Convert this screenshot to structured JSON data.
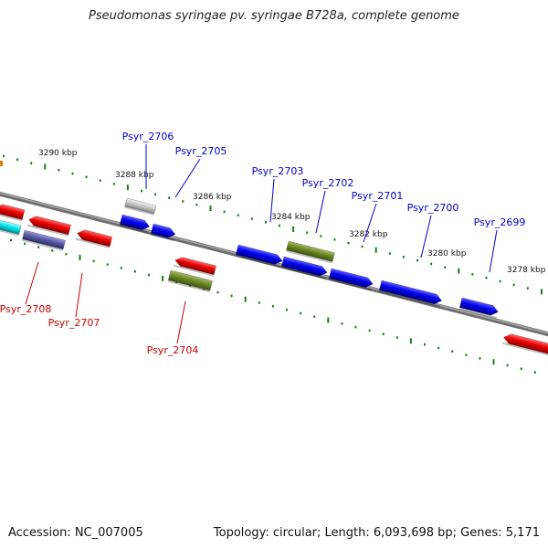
{
  "title": "Pseudomonas syringae pv. syringae B728a, complete genome",
  "footer": {
    "accession": "Accession: NC_007005",
    "topology": "Topology: circular; Length: 6,093,698 bp; Genes: 5,171"
  },
  "colors": {
    "backbone": "#808080",
    "label_forward": "#0000cc",
    "label_reverse": "#cc0000",
    "tick": "#1a7a1a"
  },
  "kbp_labels": [
    "3290 kbp",
    "3288 kbp",
    "3286 kbp",
    "3284 kbp",
    "3282 kbp",
    "3280 kbp",
    "3278 kbp"
  ],
  "gene_labels": {
    "forward": [
      "Psyr_2706",
      "Psyr_2705",
      "Psyr_2703",
      "Psyr_2702",
      "Psyr_2701",
      "Psyr_2700",
      "Psyr_2699"
    ],
    "reverse": [
      "Psyr_2708",
      "Psyr_2707",
      "Psyr_2704"
    ]
  }
}
